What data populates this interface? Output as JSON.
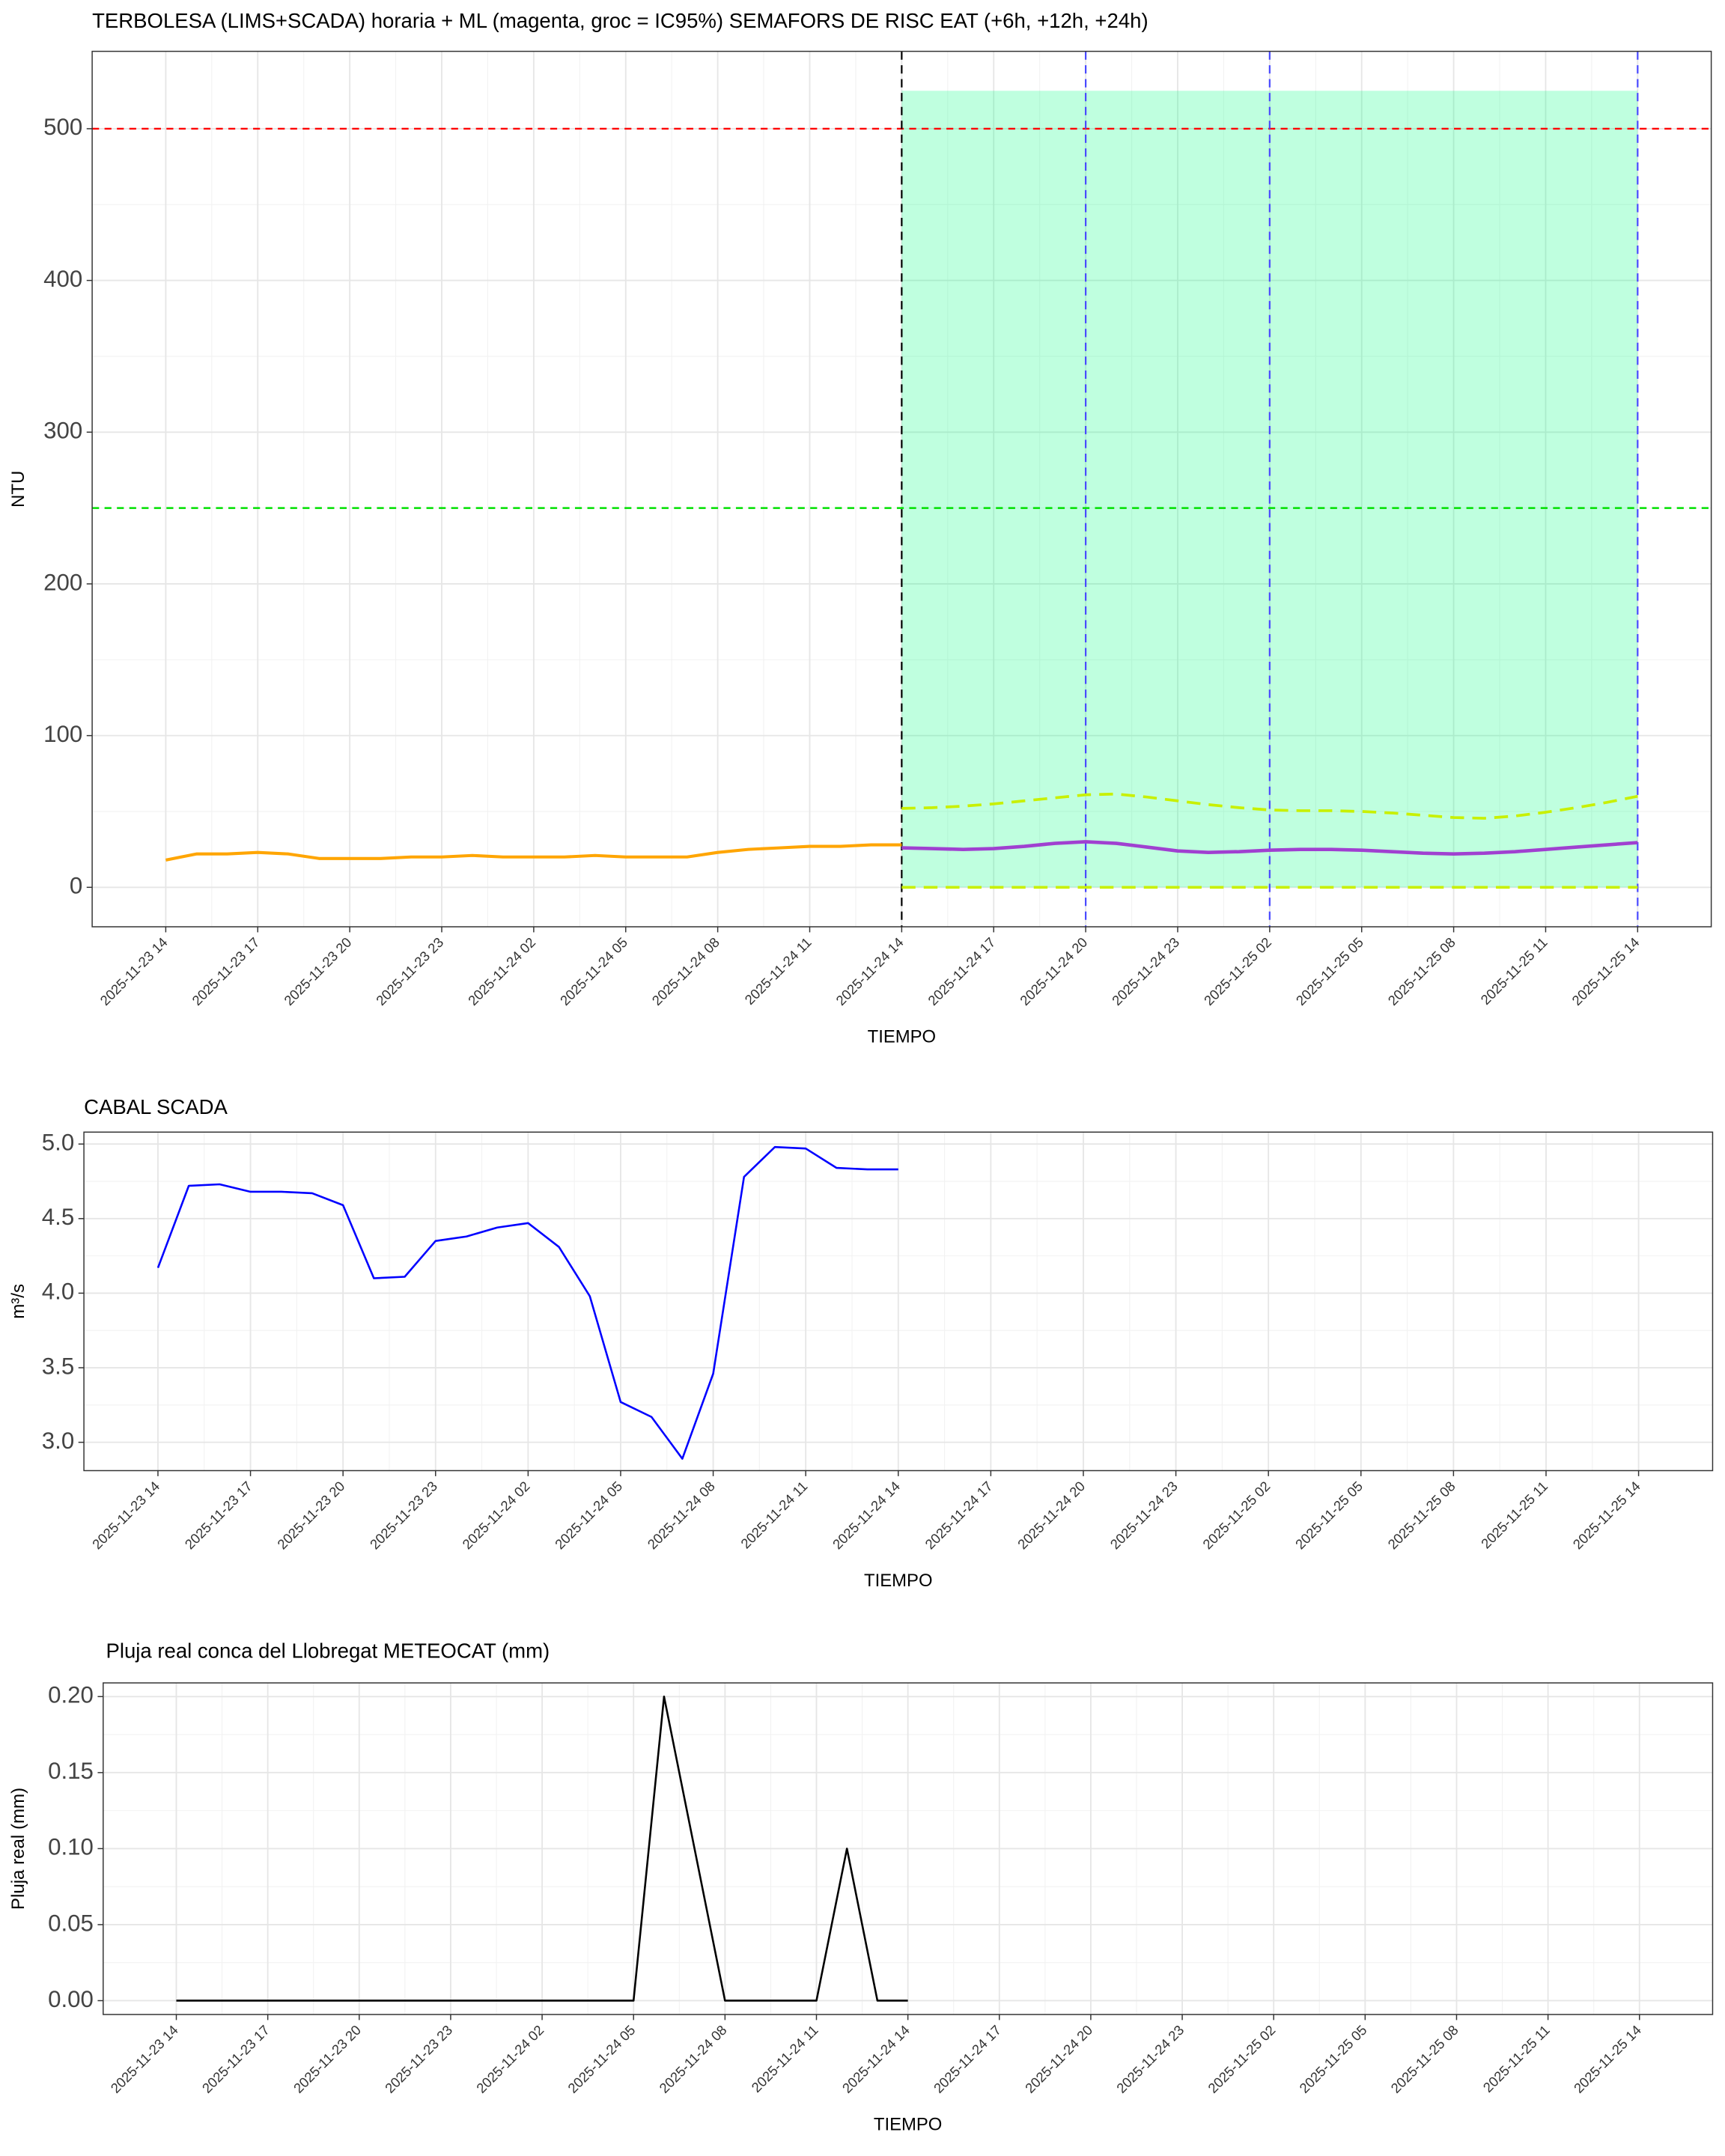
{
  "chart_data": [
    {
      "type": "line",
      "title": "TERBOLESA (LIMS+SCADA) horaria + ML (magenta, groc = IC95%) SEMAFORS DE RISC EAT (+6h, +12h, +24h)",
      "xlabel": "TIEMPO",
      "ylabel": "NTU",
      "x": [
        "2025-11-23 14",
        "2025-11-23 15",
        "2025-11-23 16",
        "2025-11-23 17",
        "2025-11-23 18",
        "2025-11-23 19",
        "2025-11-23 20",
        "2025-11-23 21",
        "2025-11-23 22",
        "2025-11-23 23",
        "2025-11-24 00",
        "2025-11-24 01",
        "2025-11-24 02",
        "2025-11-24 03",
        "2025-11-24 04",
        "2025-11-24 05",
        "2025-11-24 06",
        "2025-11-24 07",
        "2025-11-24 08",
        "2025-11-24 09",
        "2025-11-24 10",
        "2025-11-24 11",
        "2025-11-24 12",
        "2025-11-24 13",
        "2025-11-24 14",
        "2025-11-24 15",
        "2025-11-24 16",
        "2025-11-24 17",
        "2025-11-24 18",
        "2025-11-24 19",
        "2025-11-24 20",
        "2025-11-24 21",
        "2025-11-24 22",
        "2025-11-24 23",
        "2025-11-25 00",
        "2025-11-25 01",
        "2025-11-25 02",
        "2025-11-25 03",
        "2025-11-25 04",
        "2025-11-25 05",
        "2025-11-25 06",
        "2025-11-25 07",
        "2025-11-25 08",
        "2025-11-25 09",
        "2025-11-25 10",
        "2025-11-25 11",
        "2025-11-25 12",
        "2025-11-25 13",
        "2025-11-25 14"
      ],
      "xticks": [
        "2025-11-23 14",
        "2025-11-23 17",
        "2025-11-23 20",
        "2025-11-23 23",
        "2025-11-24 02",
        "2025-11-24 05",
        "2025-11-24 08",
        "2025-11-24 11",
        "2025-11-24 14",
        "2025-11-24 17",
        "2025-11-24 20",
        "2025-11-24 23",
        "2025-11-25 02",
        "2025-11-25 05",
        "2025-11-25 08",
        "2025-11-25 11",
        "2025-11-25 14"
      ],
      "ylim": [
        -26,
        551
      ],
      "yticks": [
        0,
        100,
        200,
        300,
        400,
        500
      ],
      "grid": true,
      "band": {
        "x": [
          "2025-11-24 14",
          "2025-11-25 14"
        ],
        "y": [
          0,
          525
        ],
        "color": "#00ff80"
      },
      "hlines": [
        {
          "value": 500,
          "color": "#ff0000"
        },
        {
          "value": 250,
          "color": "#00e000"
        }
      ],
      "vlines": [
        {
          "x": "2025-11-24 14",
          "color": "#000000"
        },
        {
          "x": "2025-11-24 20",
          "color": "#4a4aff"
        },
        {
          "x": "2025-11-25 02",
          "color": "#4a4aff"
        },
        {
          "x": "2025-11-25 14",
          "color": "#4a4aff"
        }
      ],
      "series": [
        {
          "color": "#ffa500",
          "width": 2.2,
          "dash": false,
          "values": [
            18,
            22,
            22,
            23,
            22,
            19,
            19,
            19,
            20,
            20,
            21,
            20,
            20,
            20,
            21,
            20,
            20,
            20,
            23,
            25,
            26,
            27,
            27,
            28,
            28,
            null,
            null,
            null,
            null,
            null,
            null,
            null,
            null,
            null,
            null,
            null,
            null,
            null,
            null,
            null,
            null,
            null,
            null,
            null,
            null,
            null,
            null,
            null,
            null
          ]
        },
        {
          "color": "#c8f000",
          "width": 2,
          "dash": true,
          "values": [
            null,
            null,
            null,
            null,
            null,
            null,
            null,
            null,
            null,
            null,
            null,
            null,
            null,
            null,
            null,
            null,
            null,
            null,
            null,
            null,
            null,
            null,
            null,
            null,
            52,
            52.5,
            53.5,
            55,
            57,
            59,
            61,
            61.5,
            59.5,
            57,
            54.5,
            52.5,
            51,
            50.5,
            50.5,
            50,
            49,
            47.5,
            46,
            45.5,
            47,
            49.5,
            52.5,
            56,
            60
          ]
        },
        {
          "color": "#c8f000",
          "width": 2,
          "dash": true,
          "values": [
            null,
            null,
            null,
            null,
            null,
            null,
            null,
            null,
            null,
            null,
            null,
            null,
            null,
            null,
            null,
            null,
            null,
            null,
            null,
            null,
            null,
            null,
            null,
            null,
            0,
            0,
            0,
            0,
            0,
            0,
            0,
            0,
            0,
            0,
            0,
            0,
            0,
            0,
            0,
            0,
            0,
            0,
            0,
            0,
            0,
            0,
            0,
            0,
            0
          ]
        },
        {
          "color": "#a040d0",
          "width": 2.5,
          "dash": false,
          "values": [
            null,
            null,
            null,
            null,
            null,
            null,
            null,
            null,
            null,
            null,
            null,
            null,
            null,
            null,
            null,
            null,
            null,
            null,
            null,
            null,
            null,
            null,
            null,
            null,
            26,
            25.5,
            25,
            25.5,
            27,
            29,
            30,
            29,
            26.5,
            24,
            23,
            23.5,
            24.5,
            25,
            25,
            24.5,
            23.5,
            22.5,
            22,
            22.5,
            23.5,
            25,
            26.5,
            28,
            29.5
          ]
        }
      ]
    },
    {
      "type": "line",
      "title": "CABAL SCADA",
      "xlabel": "TIEMPO",
      "ylabel": "m³/s",
      "x": [
        "2025-11-23 14",
        "2025-11-23 15",
        "2025-11-23 16",
        "2025-11-23 17",
        "2025-11-23 18",
        "2025-11-23 19",
        "2025-11-23 20",
        "2025-11-23 21",
        "2025-11-23 22",
        "2025-11-23 23",
        "2025-11-24 00",
        "2025-11-24 01",
        "2025-11-24 02",
        "2025-11-24 03",
        "2025-11-24 04",
        "2025-11-24 05",
        "2025-11-24 06",
        "2025-11-24 07",
        "2025-11-24 08",
        "2025-11-24 09",
        "2025-11-24 10",
        "2025-11-24 11",
        "2025-11-24 12",
        "2025-11-24 13",
        "2025-11-24 14",
        "2025-11-24 15",
        "2025-11-24 16",
        "2025-11-24 17",
        "2025-11-24 18",
        "2025-11-24 19",
        "2025-11-24 20",
        "2025-11-24 21",
        "2025-11-24 22",
        "2025-11-24 23",
        "2025-11-25 00",
        "2025-11-25 01",
        "2025-11-25 02",
        "2025-11-25 03",
        "2025-11-25 04",
        "2025-11-25 05",
        "2025-11-25 06",
        "2025-11-25 07",
        "2025-11-25 08",
        "2025-11-25 09",
        "2025-11-25 10",
        "2025-11-25 11",
        "2025-11-25 12",
        "2025-11-25 13",
        "2025-11-25 14"
      ],
      "xticks": [
        "2025-11-23 14",
        "2025-11-23 17",
        "2025-11-23 20",
        "2025-11-23 23",
        "2025-11-24 02",
        "2025-11-24 05",
        "2025-11-24 08",
        "2025-11-24 11",
        "2025-11-24 14",
        "2025-11-24 17",
        "2025-11-24 20",
        "2025-11-24 23",
        "2025-11-25 02",
        "2025-11-25 05",
        "2025-11-25 08",
        "2025-11-25 11",
        "2025-11-25 14"
      ],
      "ylim": [
        2.81,
        5.08
      ],
      "yticks": [
        {
          "value": 3,
          "label": "3.0"
        },
        3.5,
        {
          "value": 4,
          "label": "4.0"
        },
        4.5,
        {
          "value": 5,
          "label": "5.0"
        }
      ],
      "grid": true,
      "series": [
        {
          "color": "#0000ff",
          "width": 1.4,
          "dash": false,
          "values": [
            4.17,
            4.72,
            4.73,
            4.68,
            4.68,
            4.67,
            4.59,
            4.1,
            4.11,
            4.35,
            4.38,
            4.44,
            4.47,
            4.31,
            3.98,
            3.27,
            3.17,
            2.89,
            3.46,
            4.78,
            4.98,
            4.97,
            4.84,
            4.83,
            4.83,
            null,
            null,
            null,
            null,
            null,
            null,
            null,
            null,
            null,
            null,
            null,
            null,
            null,
            null,
            null,
            null,
            null,
            null,
            null,
            null,
            null,
            null,
            null,
            null
          ]
        }
      ]
    },
    {
      "type": "line",
      "title": "Pluja real conca del Llobregat METEOCAT (mm)",
      "xlabel": "TIEMPO",
      "ylabel": "Pluja real (mm)",
      "x": [
        "2025-11-23 14",
        "2025-11-23 15",
        "2025-11-23 16",
        "2025-11-23 17",
        "2025-11-23 18",
        "2025-11-23 19",
        "2025-11-23 20",
        "2025-11-23 21",
        "2025-11-23 22",
        "2025-11-23 23",
        "2025-11-24 00",
        "2025-11-24 01",
        "2025-11-24 02",
        "2025-11-24 03",
        "2025-11-24 04",
        "2025-11-24 05",
        "2025-11-24 06",
        "2025-11-24 07",
        "2025-11-24 08",
        "2025-11-24 09",
        "2025-11-24 10",
        "2025-11-24 11",
        "2025-11-24 12",
        "2025-11-24 13",
        "2025-11-24 14",
        "2025-11-24 15",
        "2025-11-24 16",
        "2025-11-24 17",
        "2025-11-24 18",
        "2025-11-24 19",
        "2025-11-24 20",
        "2025-11-24 21",
        "2025-11-24 22",
        "2025-11-24 23",
        "2025-11-25 00",
        "2025-11-25 01",
        "2025-11-25 02",
        "2025-11-25 03",
        "2025-11-25 04",
        "2025-11-25 05",
        "2025-11-25 06",
        "2025-11-25 07",
        "2025-11-25 08",
        "2025-11-25 09",
        "2025-11-25 10",
        "2025-11-25 11",
        "2025-11-25 12",
        "2025-11-25 13",
        "2025-11-25 14"
      ],
      "xticks": [
        "2025-11-23 14",
        "2025-11-23 17",
        "2025-11-23 20",
        "2025-11-23 23",
        "2025-11-24 02",
        "2025-11-24 05",
        "2025-11-24 08",
        "2025-11-24 11",
        "2025-11-24 14",
        "2025-11-24 17",
        "2025-11-24 20",
        "2025-11-24 23",
        "2025-11-25 02",
        "2025-11-25 05",
        "2025-11-25 08",
        "2025-11-25 11",
        "2025-11-25 14"
      ],
      "ylim": [
        -0.0091,
        0.209
      ],
      "yticks": [
        {
          "value": 0,
          "label": "0.00"
        },
        {
          "value": 0.05,
          "label": "0.05"
        },
        {
          "value": 0.1,
          "label": "0.10"
        },
        {
          "value": 0.15,
          "label": "0.15"
        },
        {
          "value": 0.2,
          "label": "0.20"
        }
      ],
      "grid": true,
      "series": [
        {
          "color": "#000000",
          "width": 1.4,
          "dash": false,
          "values": [
            0,
            0,
            0,
            0,
            0,
            0,
            0,
            0,
            0,
            0,
            0,
            0,
            0,
            0,
            0,
            0,
            0.2,
            0.1,
            0,
            0,
            0,
            0,
            0.1,
            0,
            0,
            null,
            null,
            null,
            null,
            null,
            null,
            null,
            null,
            null,
            null,
            null,
            null,
            null,
            null,
            null,
            null,
            null,
            null,
            null,
            null,
            null,
            null,
            null,
            null
          ]
        }
      ]
    }
  ]
}
